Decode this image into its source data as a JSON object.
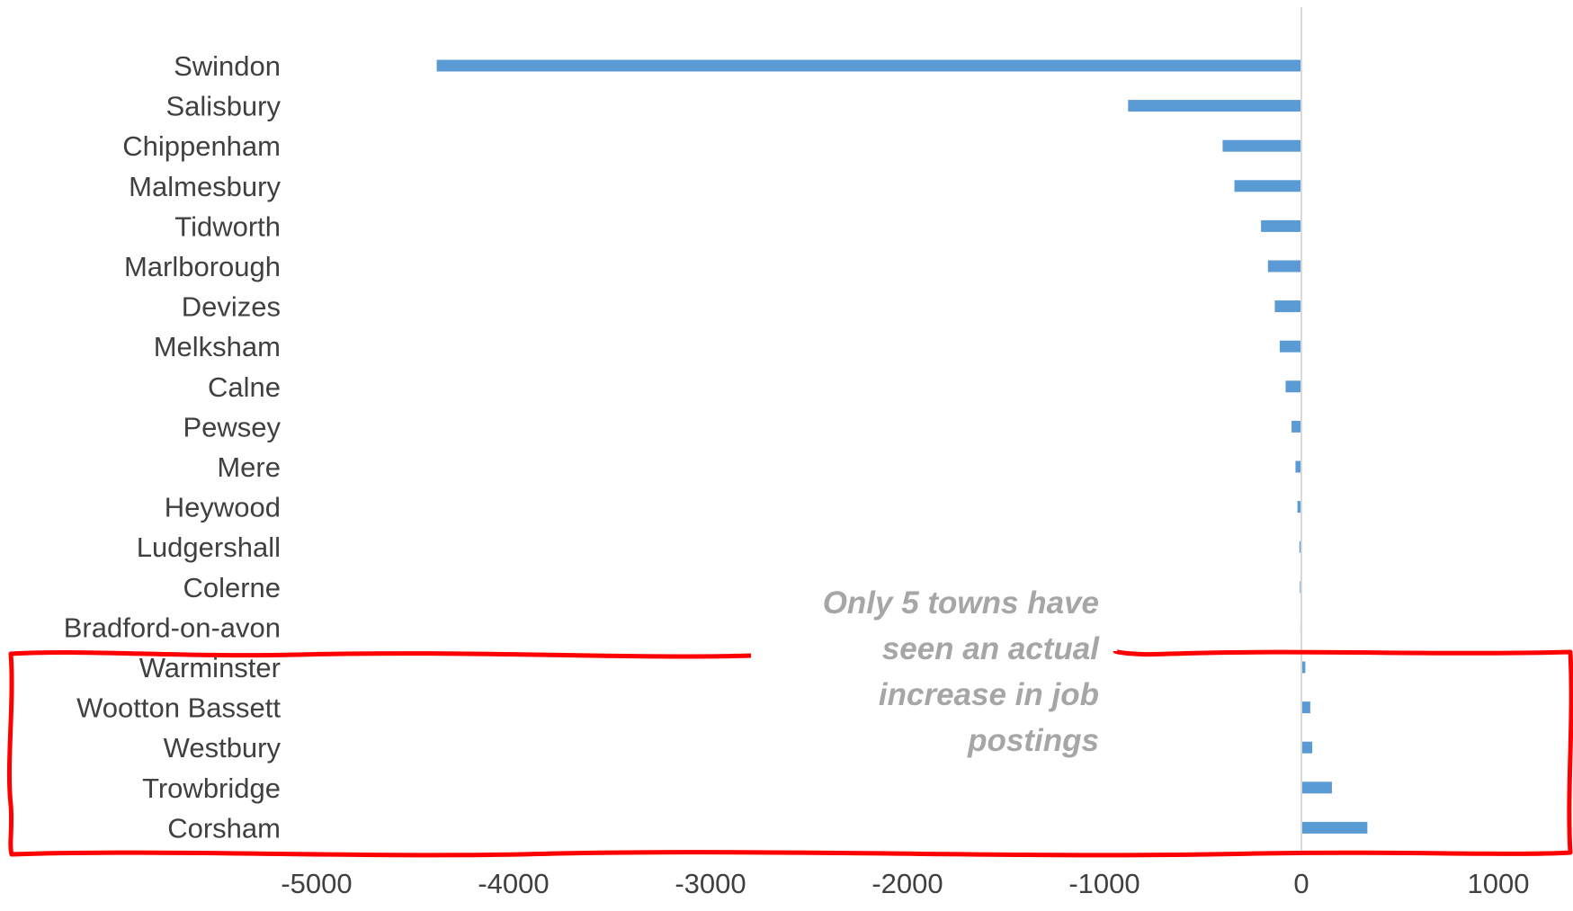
{
  "chart_data": {
    "type": "bar",
    "orientation": "horizontal",
    "categories": [
      "Swindon",
      "Salisbury",
      "Chippenham",
      "Malmesbury",
      "Tidworth",
      "Marlborough",
      "Devizes",
      "Melksham",
      "Calne",
      "Pewsey",
      "Mere",
      "Heywood",
      "Ludgershall",
      "Colerne",
      "Bradford-on-avon",
      "Warminster",
      "Wootton Bassett",
      "Westbury",
      "Trowbridge",
      "Corsham"
    ],
    "values": [
      -4390,
      -880,
      -400,
      -340,
      -205,
      -170,
      -135,
      -110,
      -80,
      -50,
      -30,
      -20,
      -10,
      -8,
      -5,
      20,
      45,
      55,
      155,
      335
    ],
    "xlim": [
      -5000,
      1000
    ],
    "xticks": [
      -5000,
      -4000,
      -3000,
      -2000,
      -1000,
      0,
      1000
    ],
    "xtick_labels": [
      "-5000",
      "-4000",
      "-3000",
      "-2000",
      "-1000",
      "0",
      "1000"
    ],
    "bar_color": "#5b9bd5",
    "axis_color": "#d9d9d9",
    "grid": false,
    "legend": "none",
    "annotation": {
      "lines": [
        "Only 5 towns have",
        "seen an actual",
        "increase in job",
        "postings"
      ],
      "color": "#a6a6a6"
    },
    "highlight": {
      "color": "#ff0000",
      "categories": [
        "Warminster",
        "Wootton Bassett",
        "Westbury",
        "Trowbridge",
        "Corsham"
      ]
    }
  }
}
